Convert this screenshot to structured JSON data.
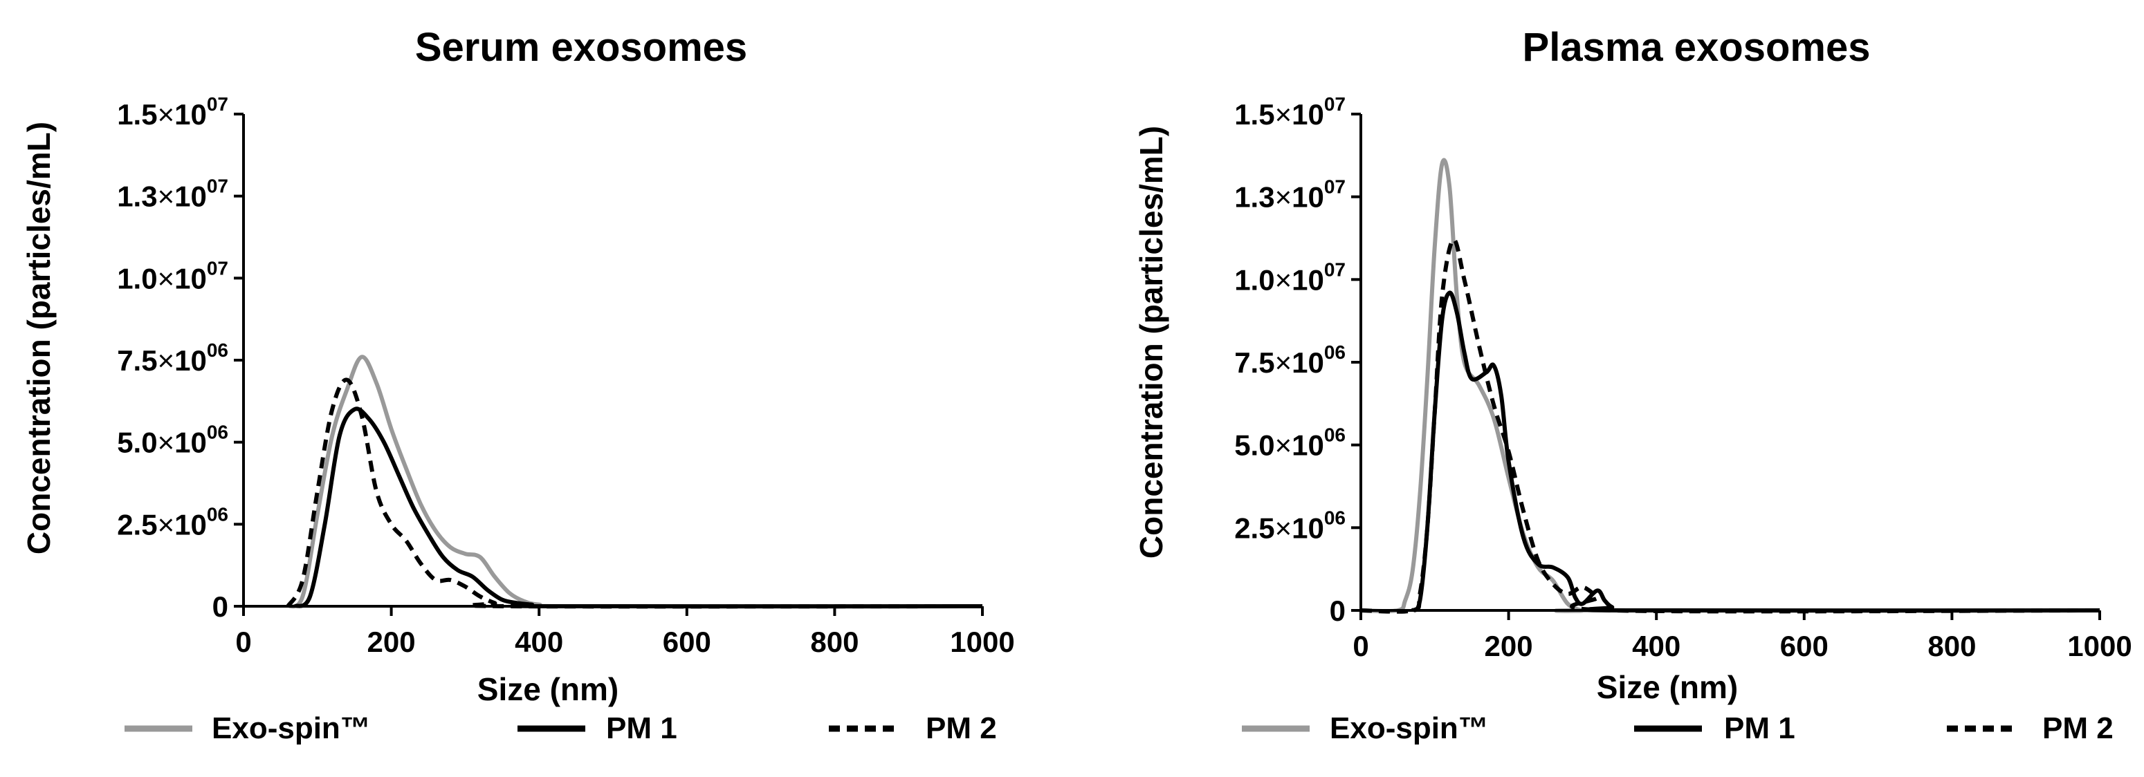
{
  "chart_data": [
    {
      "type": "line",
      "title": "Serum exosomes",
      "xlabel": "Size (nm)",
      "ylabel": "Concentration (particles/mL)",
      "xlim": [
        0,
        1000
      ],
      "ylim": [
        0,
        15000000
      ],
      "x_ticks": [
        {
          "value": 0,
          "label": "0"
        },
        {
          "value": 200,
          "label": "200"
        },
        {
          "value": 400,
          "label": "400"
        },
        {
          "value": 600,
          "label": "600"
        },
        {
          "value": 800,
          "label": "800"
        },
        {
          "value": 1000,
          "label": "1000"
        }
      ],
      "y_ticks": [
        {
          "value": 0,
          "label": "0"
        },
        {
          "value": 2500000,
          "mantissa": "2.5",
          "times": "×",
          "base": "10",
          "exponent": "06"
        },
        {
          "value": 5000000,
          "mantissa": "5.0",
          "times": "×",
          "base": "10",
          "exponent": "06"
        },
        {
          "value": 7500000,
          "mantissa": "7.5",
          "times": "×",
          "base": "10",
          "exponent": "06"
        },
        {
          "value": 10000000,
          "mantissa": "1.0",
          "times": "×",
          "base": "10",
          "exponent": "07"
        },
        {
          "value": 12500000,
          "mantissa": "1.3",
          "times": "×",
          "base": "10",
          "exponent": "07"
        },
        {
          "value": 15000000,
          "mantissa": "1.5",
          "times": "×",
          "base": "10",
          "exponent": "07"
        }
      ],
      "legend_position": "bottom",
      "series": [
        {
          "name": "Exo-spin™",
          "color": "#999999",
          "style": "solid",
          "points": [
            [
              60,
              0
            ],
            [
              80,
              300000
            ],
            [
              100,
              2800000
            ],
            [
              120,
              5200000
            ],
            [
              140,
              6600000
            ],
            [
              160,
              7600000
            ],
            [
              180,
              6800000
            ],
            [
              200,
              5400000
            ],
            [
              220,
              4200000
            ],
            [
              240,
              3100000
            ],
            [
              260,
              2300000
            ],
            [
              280,
              1800000
            ],
            [
              300,
              1600000
            ],
            [
              320,
              1500000
            ],
            [
              340,
              900000
            ],
            [
              360,
              400000
            ],
            [
              380,
              150000
            ],
            [
              400,
              50000
            ],
            [
              450,
              0
            ],
            [
              1000,
              0
            ]
          ]
        },
        {
          "name": "PM 1",
          "color": "#000000",
          "style": "solid",
          "points": [
            [
              70,
              0
            ],
            [
              90,
              300000
            ],
            [
              110,
              2500000
            ],
            [
              130,
              5200000
            ],
            [
              150,
              6000000
            ],
            [
              170,
              5700000
            ],
            [
              190,
              5000000
            ],
            [
              210,
              4000000
            ],
            [
              230,
              3000000
            ],
            [
              250,
              2200000
            ],
            [
              270,
              1500000
            ],
            [
              290,
              1100000
            ],
            [
              310,
              900000
            ],
            [
              330,
              500000
            ],
            [
              350,
              200000
            ],
            [
              370,
              100000
            ],
            [
              390,
              50000
            ],
            [
              420,
              0
            ],
            [
              1000,
              0
            ]
          ]
        },
        {
          "name": "PM 2",
          "color": "#000000",
          "style": "dashed",
          "points": [
            [
              60,
              0
            ],
            [
              80,
              800000
            ],
            [
              100,
              3500000
            ],
            [
              120,
              6000000
            ],
            [
              140,
              6900000
            ],
            [
              160,
              5800000
            ],
            [
              180,
              3500000
            ],
            [
              200,
              2500000
            ],
            [
              220,
              2000000
            ],
            [
              240,
              1300000
            ],
            [
              260,
              800000
            ],
            [
              280,
              800000
            ],
            [
              300,
              600000
            ],
            [
              320,
              300000
            ],
            [
              340,
              100000
            ],
            [
              360,
              0
            ],
            [
              1000,
              0
            ]
          ]
        }
      ]
    },
    {
      "type": "line",
      "title": "Plasma exosomes",
      "xlabel": "Size (nm)",
      "ylabel": "Concentration (particles/mL)",
      "xlim": [
        0,
        1000
      ],
      "ylim": [
        0,
        15000000
      ],
      "x_ticks": [
        {
          "value": 0,
          "label": "0"
        },
        {
          "value": 200,
          "label": "200"
        },
        {
          "value": 400,
          "label": "400"
        },
        {
          "value": 600,
          "label": "600"
        },
        {
          "value": 800,
          "label": "800"
        },
        {
          "value": 1000,
          "label": "1000"
        }
      ],
      "y_ticks": [
        {
          "value": 0,
          "label": "0"
        },
        {
          "value": 2500000,
          "mantissa": "2.5",
          "times": "×",
          "base": "10",
          "exponent": "06"
        },
        {
          "value": 5000000,
          "mantissa": "5.0",
          "times": "×",
          "base": "10",
          "exponent": "06"
        },
        {
          "value": 7500000,
          "mantissa": "7.5",
          "times": "×",
          "base": "10",
          "exponent": "06"
        },
        {
          "value": 10000000,
          "mantissa": "1.0",
          "times": "×",
          "base": "10",
          "exponent": "07"
        },
        {
          "value": 12500000,
          "mantissa": "1.3",
          "times": "×",
          "base": "10",
          "exponent": "07"
        },
        {
          "value": 15000000,
          "mantissa": "1.5",
          "times": "×",
          "base": "10",
          "exponent": "07"
        }
      ],
      "legend_position": "bottom",
      "series": [
        {
          "name": "Exo-spin™",
          "color": "#999999",
          "style": "solid",
          "points": [
            [
              0,
              0
            ],
            [
              50,
              0
            ],
            [
              60,
              300000
            ],
            [
              70,
              1200000
            ],
            [
              80,
              3500000
            ],
            [
              90,
              7000000
            ],
            [
              100,
              11000000
            ],
            [
              110,
              13500000
            ],
            [
              120,
              12800000
            ],
            [
              130,
              9500000
            ],
            [
              140,
              7500000
            ],
            [
              160,
              6800000
            ],
            [
              180,
              5800000
            ],
            [
              200,
              4000000
            ],
            [
              220,
              2300000
            ],
            [
              240,
              1300000
            ],
            [
              260,
              900000
            ],
            [
              280,
              200000
            ],
            [
              300,
              0
            ],
            [
              320,
              0
            ],
            [
              1000,
              0
            ]
          ]
        },
        {
          "name": "PM 1",
          "color": "#000000",
          "style": "solid",
          "points": [
            [
              70,
              0
            ],
            [
              80,
              300000
            ],
            [
              90,
              2500000
            ],
            [
              100,
              6000000
            ],
            [
              110,
              8800000
            ],
            [
              120,
              9600000
            ],
            [
              130,
              9000000
            ],
            [
              140,
              7800000
            ],
            [
              150,
              7000000
            ],
            [
              170,
              7200000
            ],
            [
              180,
              7400000
            ],
            [
              190,
              6500000
            ],
            [
              200,
              4500000
            ],
            [
              220,
              2200000
            ],
            [
              240,
              1400000
            ],
            [
              260,
              1300000
            ],
            [
              280,
              1000000
            ],
            [
              290,
              400000
            ],
            [
              300,
              200000
            ],
            [
              320,
              600000
            ],
            [
              330,
              300000
            ],
            [
              340,
              100000
            ],
            [
              360,
              0
            ],
            [
              1000,
              0
            ]
          ]
        },
        {
          "name": "PM 2",
          "color": "#000000",
          "style": "dashed",
          "points": [
            [
              0,
              0
            ],
            [
              70,
              0
            ],
            [
              80,
              500000
            ],
            [
              90,
              2500000
            ],
            [
              100,
              6000000
            ],
            [
              110,
              9500000
            ],
            [
              125,
              11200000
            ],
            [
              140,
              10000000
            ],
            [
              160,
              8000000
            ],
            [
              180,
              6200000
            ],
            [
              200,
              4800000
            ],
            [
              220,
              3000000
            ],
            [
              240,
              1500000
            ],
            [
              260,
              800000
            ],
            [
              280,
              500000
            ],
            [
              300,
              700000
            ],
            [
              320,
              400000
            ],
            [
              340,
              0
            ],
            [
              1000,
              0
            ]
          ]
        }
      ]
    }
  ]
}
